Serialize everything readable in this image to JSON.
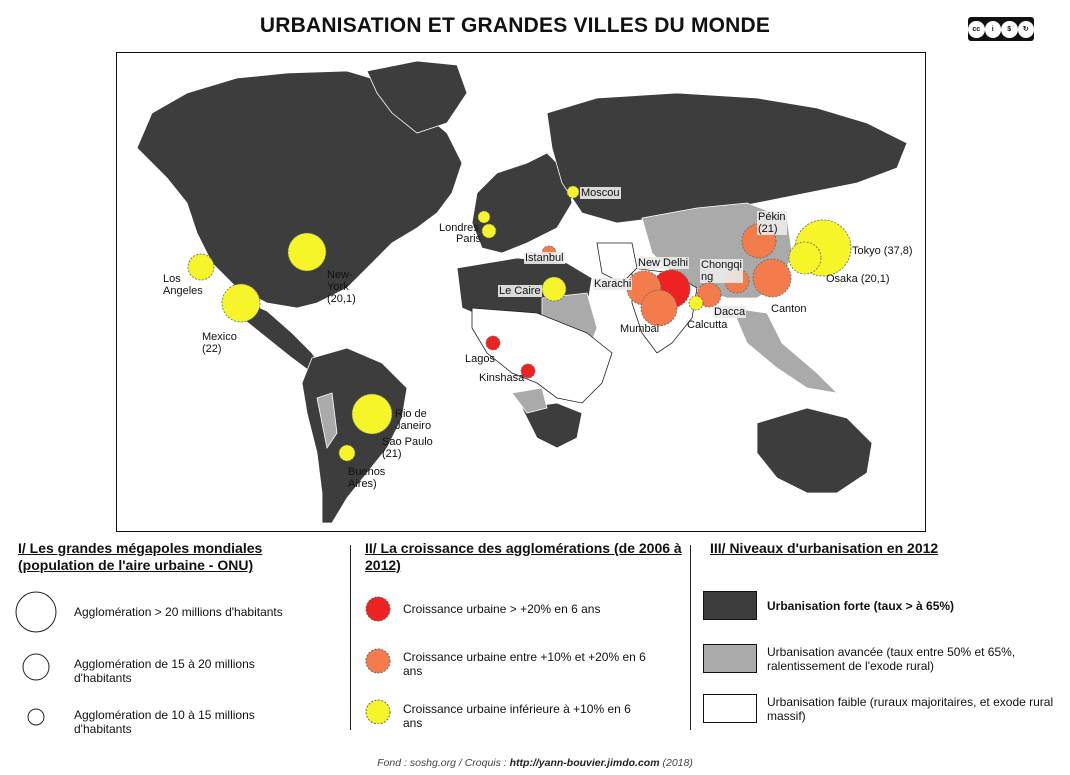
{
  "title": "URBANISATION ET GRANDES VILLES DU MONDE",
  "license": {
    "badge": "cc",
    "parts": [
      "BY",
      "NC",
      "SA"
    ]
  },
  "colors": {
    "forte": "#3d3d3d",
    "avancee": "#aaaaaa",
    "faible": "#ffffff",
    "rouge": "#ee2222",
    "orange": "#f47c4c",
    "jaune": "#f5f52a"
  },
  "cities": [
    {
      "name": "Tokyo (37,8)",
      "growth": "jaune",
      "size": "large"
    },
    {
      "name": "Osaka (20,1)",
      "growth": "jaune",
      "size": "large"
    },
    {
      "name": "Pékin\n(21)",
      "growth": "orange",
      "size": "large"
    },
    {
      "name": "Chongqi\nng",
      "growth": "orange",
      "size": "medium"
    },
    {
      "name": "Canton",
      "growth": "orange",
      "size": "large"
    },
    {
      "name": "New Delhi",
      "growth": "rouge",
      "size": "large"
    },
    {
      "name": "Karachi",
      "growth": "orange",
      "size": "large"
    },
    {
      "name": "Mumbai",
      "growth": "orange",
      "size": "large"
    },
    {
      "name": "Dacca",
      "growth": "orange",
      "size": "medium"
    },
    {
      "name": "Calcutta",
      "growth": "jaune",
      "size": "small"
    },
    {
      "name": "Moscou",
      "growth": "jaune",
      "size": "small"
    },
    {
      "name": "Londres",
      "growth": "jaune",
      "size": "small"
    },
    {
      "name": "Paris",
      "growth": "jaune",
      "size": "small"
    },
    {
      "name": "Istanbul",
      "growth": "orange",
      "size": "small"
    },
    {
      "name": "Le Caire",
      "growth": "jaune",
      "size": "medium"
    },
    {
      "name": "Lagos",
      "growth": "rouge",
      "size": "small"
    },
    {
      "name": "Kinshasa",
      "growth": "rouge",
      "size": "small"
    },
    {
      "name": "New-\nYork\n(20,1)",
      "growth": "jaune",
      "size": "large"
    },
    {
      "name": "Los\nAngeles",
      "growth": "jaune",
      "size": "medium"
    },
    {
      "name": "Mexico\n(22)",
      "growth": "jaune",
      "size": "large"
    },
    {
      "name": "Rio de\nJaneiro",
      "growth": "jaune",
      "size": "small"
    },
    {
      "name": "Sao Paulo\n(21)",
      "growth": "jaune",
      "size": "large"
    },
    {
      "name": "Buenos\nAires)",
      "growth": "jaune",
      "size": "small"
    }
  ],
  "legend": {
    "section1": {
      "heading": "I/ Les grandes mégapoles mondiales (population de l'aire urbaine - ONU)",
      "items": [
        "Agglomération > 20 millions d'habitants",
        "Agglomération de 15 à 20 millions d'habitants",
        "Agglomération de 10 à 15 millions d'habitants"
      ]
    },
    "section2": {
      "heading": "II/ La croissance des agglomérations (de 2006 à 2012)",
      "items": [
        "Croissance urbaine > +20% en 6 ans",
        "Croissance urbaine entre +10% et +20% en 6 ans",
        "Croissance urbaine inférieure à +10% en 6 ans"
      ]
    },
    "section3": {
      "heading": "III/ Niveaux d'urbanisation en 2012",
      "items": [
        "Urbanisation forte (taux > à 65%)",
        "Urbanisation avancée (taux entre 50% et 65%, ralentissement de l'exode rural)",
        "Urbanisation faible (ruraux majoritaires, et exode rural massif)"
      ]
    }
  },
  "footer": {
    "prefix": "Fond : soshg.org / Croquis : ",
    "link": "http://yann-bouvier.jimdo.com",
    "suffix": " (2018)"
  }
}
